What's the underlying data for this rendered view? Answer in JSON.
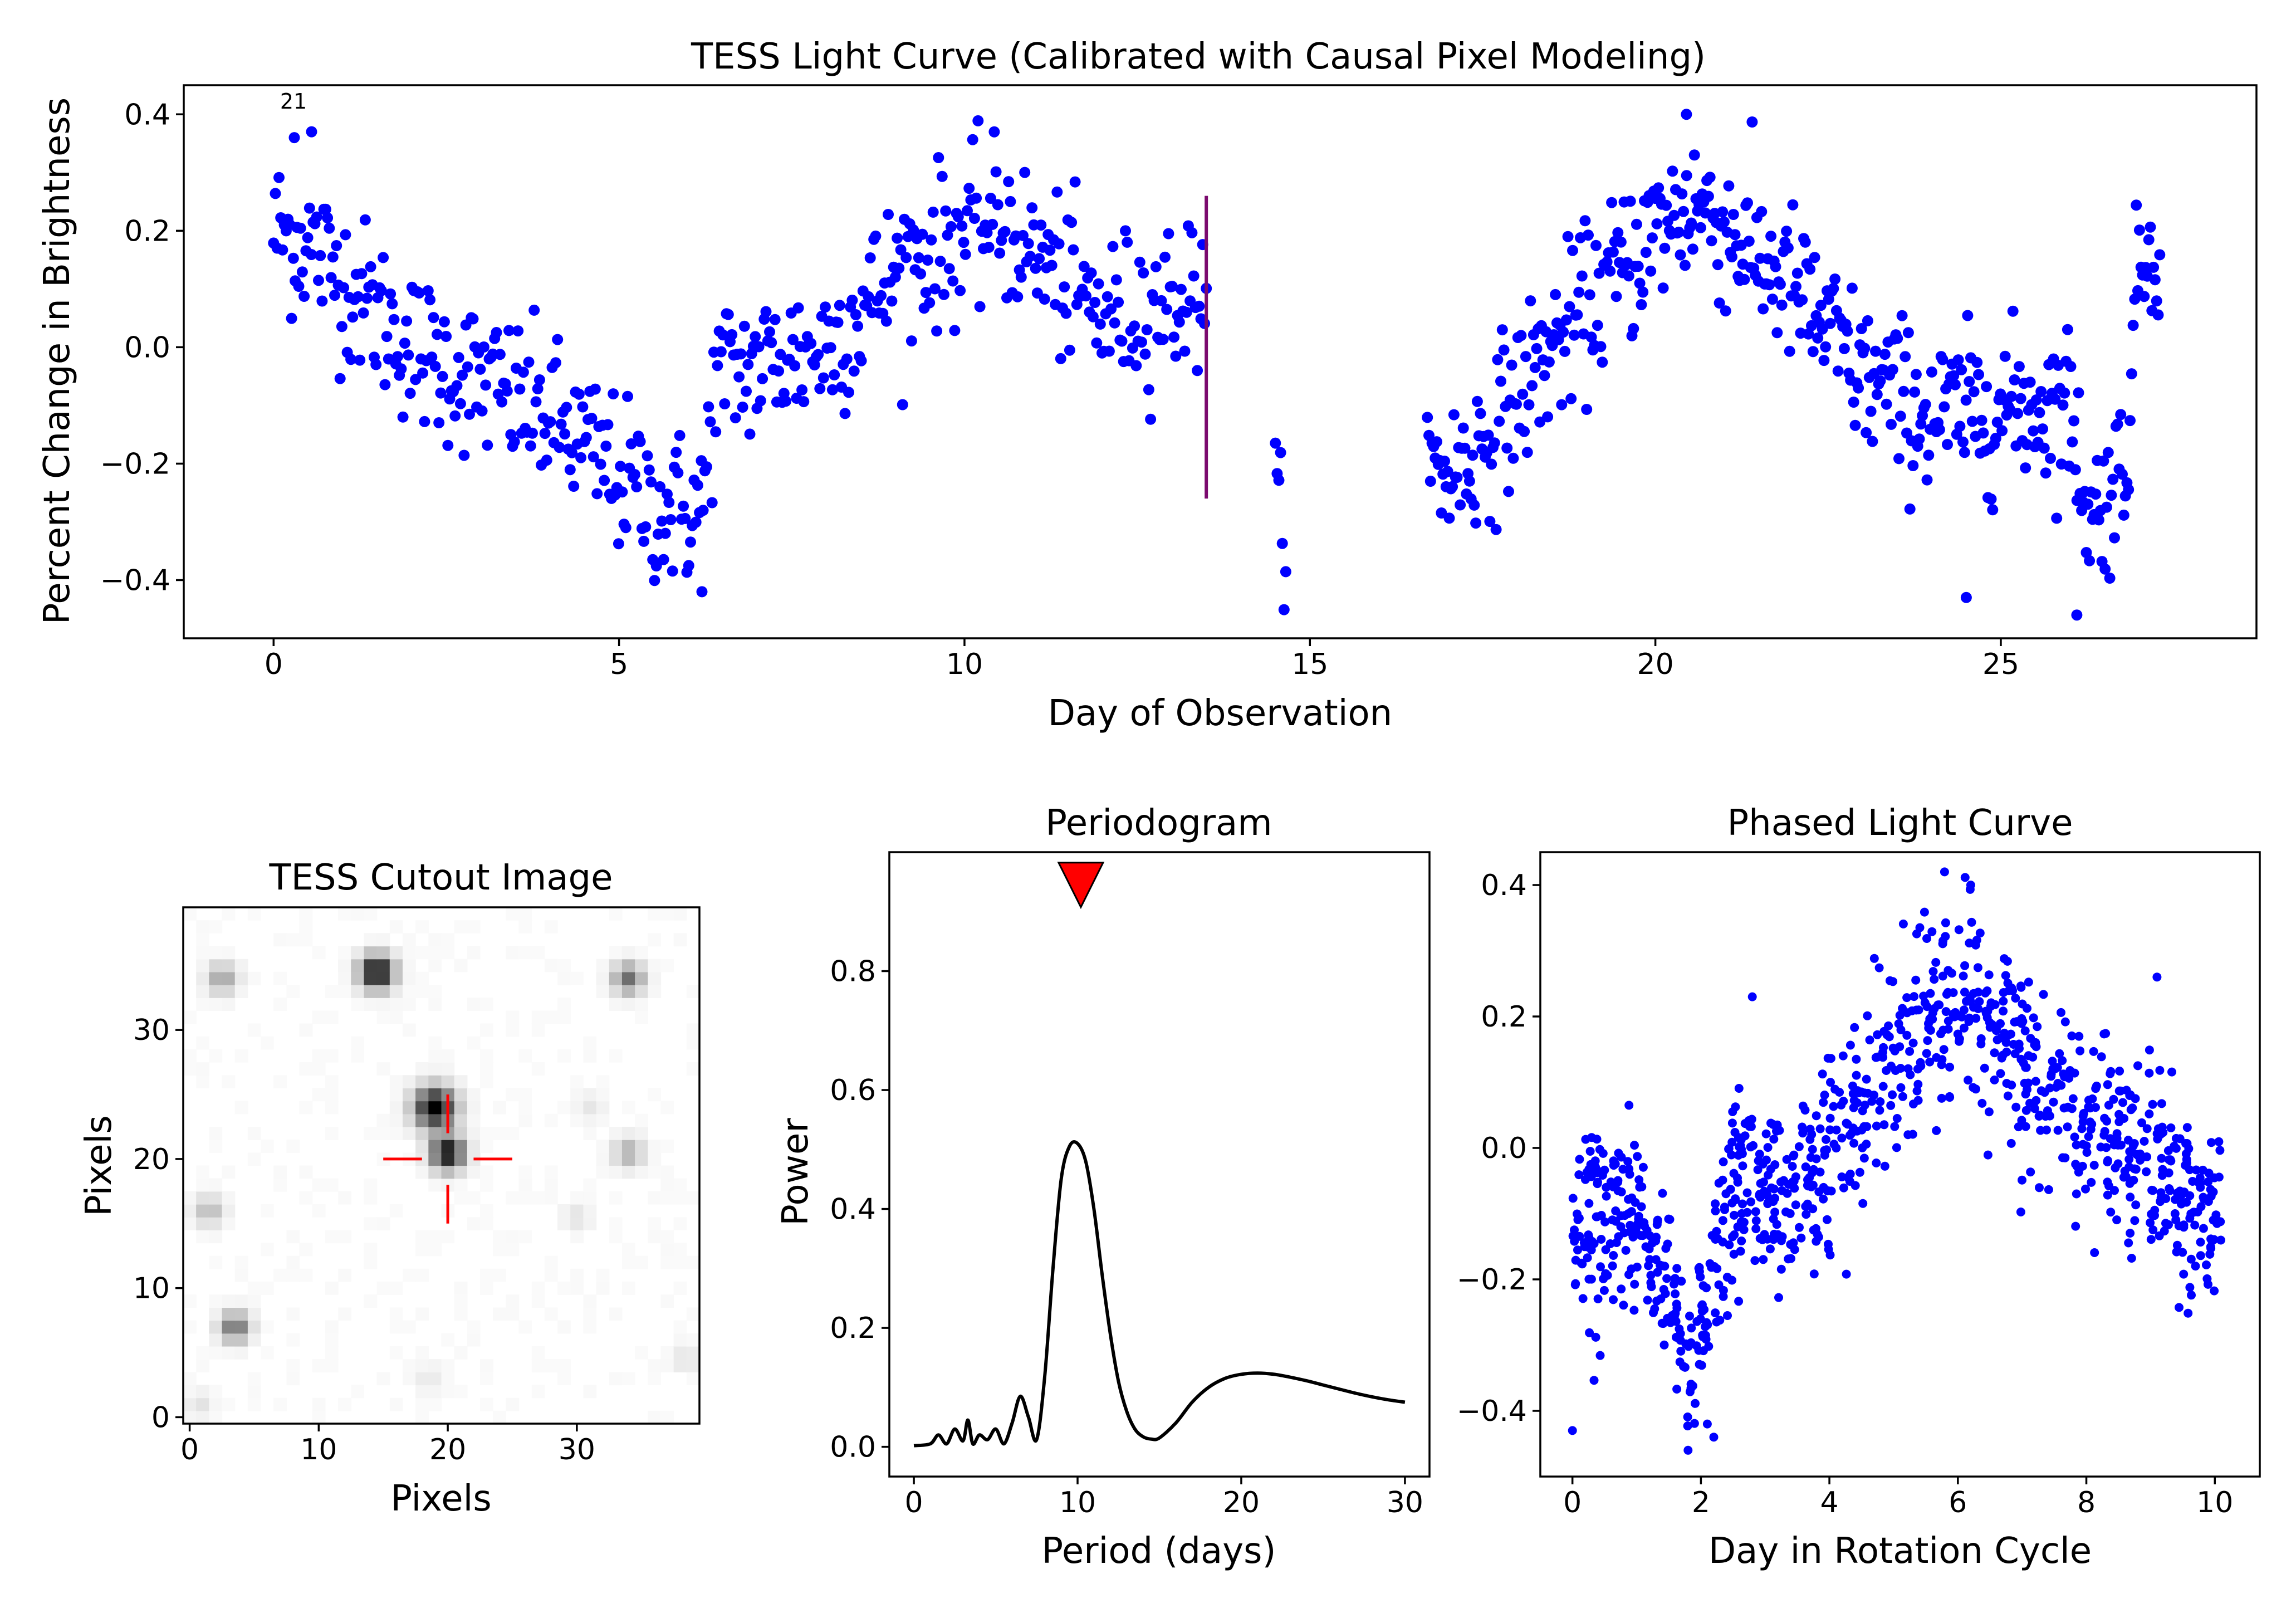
{
  "figure": {
    "panels": {
      "light_curve": {
        "title": "TESS Light Curve (Calibrated with Causal Pixel Modeling)",
        "xlabel": "Day of Observation",
        "ylabel": "Percent Change in Brightness",
        "annotation": "21"
      },
      "cutout": {
        "title": "TESS Cutout Image",
        "xlabel": "Pixels",
        "ylabel": "Pixels"
      },
      "periodogram": {
        "title": "Periodogram",
        "xlabel": "Period (days)",
        "ylabel": "Power"
      },
      "phased": {
        "title": "Phased Light Curve",
        "xlabel": "Day in Rotation Cycle",
        "ylabel": ""
      }
    }
  },
  "chart_data": [
    {
      "type": "scatter",
      "title": "TESS Light Curve (Calibrated with Causal Pixel Modeling)",
      "xlabel": "Day of Observation",
      "ylabel": "Percent Change in Brightness",
      "xlim": [
        -1.3,
        28.7
      ],
      "ylim": [
        -0.5,
        0.45
      ],
      "xticks": [
        0,
        5,
        10,
        15,
        20,
        25
      ],
      "xtick_labels": [
        "0",
        "5",
        "10",
        "15",
        "20",
        "25"
      ],
      "yticks": [
        -0.4,
        -0.2,
        0.0,
        0.2,
        0.4
      ],
      "ytick_labels": [
        "−0.4",
        "−0.2",
        "0.0",
        "0.2",
        "0.4"
      ],
      "marker_color": "#0000ff",
      "marker_line": {
        "x": 13.5,
        "y_range": [
          -0.26,
          0.26
        ],
        "color": "#7b0a6e"
      },
      "segments": [
        {
          "x_range": [
            0.0,
            13.5
          ],
          "trend": [
            [
              0,
              0.2
            ],
            [
              0.5,
              0.18
            ],
            [
              2,
              0.0
            ],
            [
              4,
              -0.12
            ],
            [
              5.6,
              -0.28
            ],
            [
              6.2,
              -0.28
            ],
            [
              6.4,
              -0.05
            ],
            [
              8,
              0.0
            ],
            [
              9.2,
              0.15
            ],
            [
              10.5,
              0.22
            ],
            [
              12,
              0.05
            ],
            [
              13.5,
              0.1
            ]
          ],
          "count": 520,
          "scatter": 0.08
        },
        {
          "x_range": [
            14.5,
            14.65
          ],
          "trend": [
            [
              14.5,
              -0.24
            ],
            [
              14.65,
              -0.32
            ]
          ],
          "count": 7,
          "scatter": 0.05
        },
        {
          "x_range": [
            16.7,
            27.3
          ],
          "trend": [
            [
              16.7,
              -0.22
            ],
            [
              17.3,
              -0.2
            ],
            [
              18.5,
              0.0
            ],
            [
              20,
              0.2
            ],
            [
              20.6,
              0.25
            ],
            [
              22,
              0.1
            ],
            [
              23,
              -0.05
            ],
            [
              24,
              -0.12
            ],
            [
              25.3,
              -0.1
            ],
            [
              26,
              -0.1
            ],
            [
              26.3,
              -0.3
            ],
            [
              26.8,
              -0.2
            ],
            [
              27.0,
              0.15
            ],
            [
              27.3,
              0.2
            ]
          ],
          "count": 470,
          "scatter": 0.08
        }
      ],
      "highlight_points": [
        [
          0.3,
          0.36
        ],
        [
          0.55,
          0.37
        ],
        [
          20.45,
          0.4
        ],
        [
          26.1,
          -0.46
        ],
        [
          24.5,
          -0.43
        ],
        [
          6.2,
          -0.42
        ]
      ]
    },
    {
      "type": "heatmap",
      "title": "TESS Cutout Image",
      "xlabel": "Pixels",
      "ylabel": "Pixels",
      "size": 40,
      "xlim": [
        -0.5,
        39.5
      ],
      "ylim": [
        -0.5,
        39.5
      ],
      "xticks": [
        0,
        10,
        20,
        30
      ],
      "xtick_labels": [
        "0",
        "10",
        "20",
        "30"
      ],
      "yticks": [
        0,
        10,
        20,
        30
      ],
      "ytick_labels": [
        "0",
        "10",
        "20",
        "30"
      ],
      "colormap": "gray_r",
      "sources": [
        {
          "x": 14.5,
          "y": 34.5,
          "amp": 1.0,
          "sigma": 0.9
        },
        {
          "x": 2.5,
          "y": 34,
          "amp": 0.35,
          "sigma": 0.8
        },
        {
          "x": 34,
          "y": 34,
          "amp": 0.55,
          "sigma": 0.8
        },
        {
          "x": 19,
          "y": 24,
          "amp": 1.0,
          "sigma": 1.1
        },
        {
          "x": 20,
          "y": 20.5,
          "amp": 0.95,
          "sigma": 0.9
        },
        {
          "x": 34,
          "y": 20.5,
          "amp": 0.3,
          "sigma": 0.8
        },
        {
          "x": 1.5,
          "y": 16,
          "amp": 0.25,
          "sigma": 0.8
        },
        {
          "x": 3.5,
          "y": 7,
          "amp": 0.55,
          "sigma": 0.8
        },
        {
          "x": 30,
          "y": 15.5,
          "amp": 0.1,
          "sigma": 0.7
        },
        {
          "x": 18.5,
          "y": 3,
          "amp": 0.08,
          "sigma": 0.7
        },
        {
          "x": 38.5,
          "y": 4.5,
          "amp": 0.1,
          "sigma": 0.7
        },
        {
          "x": 0.8,
          "y": 1,
          "amp": 0.1,
          "sigma": 0.7
        },
        {
          "x": 31,
          "y": 24,
          "amp": 0.08,
          "sigma": 0.7
        }
      ],
      "crosshair": {
        "x": 20,
        "y": 20,
        "gap": 2,
        "len": 3,
        "color": "#ff0000"
      }
    },
    {
      "type": "line",
      "title": "Periodogram",
      "xlabel": "Period (days)",
      "ylabel": "Power",
      "xlim": [
        -1.5,
        31.5
      ],
      "ylim": [
        -0.05,
        1.0
      ],
      "xticks": [
        0,
        10,
        20,
        30
      ],
      "xtick_labels": [
        "0",
        "10",
        "20",
        "30"
      ],
      "yticks": [
        0.0,
        0.2,
        0.4,
        0.6,
        0.8
      ],
      "ytick_labels": [
        "0.0",
        "0.2",
        "0.4",
        "0.6",
        "0.8"
      ],
      "line_color": "#000000",
      "x": [
        0.0,
        1.0,
        1.5,
        2.0,
        2.5,
        3.0,
        3.3,
        3.6,
        4.0,
        4.5,
        5.0,
        5.5,
        6.0,
        6.5,
        7.0,
        7.5,
        8.0,
        8.5,
        9.0,
        9.5,
        10.0,
        10.5,
        11.0,
        11.5,
        12.0,
        12.5,
        13.0,
        13.5,
        14.0,
        14.5,
        15.0,
        16.0,
        17.0,
        18.0,
        19.0,
        20.0,
        21.0,
        22.0,
        23.0,
        24.0,
        25.0,
        26.0,
        27.0,
        28.0,
        29.0,
        30.0
      ],
      "y": [
        0.002,
        0.005,
        0.02,
        0.005,
        0.03,
        0.01,
        0.045,
        0.005,
        0.02,
        0.012,
        0.03,
        0.005,
        0.04,
        0.085,
        0.05,
        0.012,
        0.12,
        0.3,
        0.45,
        0.505,
        0.51,
        0.48,
        0.4,
        0.29,
        0.19,
        0.11,
        0.06,
        0.03,
        0.017,
        0.013,
        0.015,
        0.04,
        0.075,
        0.1,
        0.115,
        0.122,
        0.124,
        0.122,
        0.117,
        0.111,
        0.104,
        0.097,
        0.09,
        0.084,
        0.079,
        0.075
      ],
      "marker": {
        "x": 10.2,
        "y": 0.945,
        "shape": "triangle-down",
        "color": "#ff0000"
      }
    },
    {
      "type": "scatter",
      "title": "Phased Light Curve",
      "xlabel": "Day in Rotation Cycle",
      "ylabel": "",
      "xlim": [
        -0.5,
        10.7
      ],
      "ylim": [
        -0.5,
        0.45
      ],
      "xticks": [
        0,
        2,
        4,
        6,
        8,
        10
      ],
      "xtick_labels": [
        "0",
        "2",
        "4",
        "6",
        "8",
        "10"
      ],
      "yticks": [
        -0.4,
        -0.2,
        0.0,
        0.2,
        0.4
      ],
      "ytick_labels": [
        "−0.4",
        "−0.2",
        "0.0",
        "0.2",
        "0.4"
      ],
      "marker_color": "#0000ff",
      "segments": [
        {
          "x_range": [
            0.0,
            10.1
          ],
          "trend": [
            [
              0,
              -0.12
            ],
            [
              1.0,
              -0.1
            ],
            [
              1.8,
              -0.3
            ],
            [
              2.2,
              -0.2
            ],
            [
              2.6,
              -0.05
            ],
            [
              3.0,
              -0.1
            ],
            [
              4.0,
              -0.02
            ],
            [
              5.0,
              0.15
            ],
            [
              6.0,
              0.22
            ],
            [
              6.5,
              0.2
            ],
            [
              7.5,
              0.08
            ],
            [
              8.5,
              0.0
            ],
            [
              9.5,
              -0.08
            ],
            [
              10.1,
              -0.15
            ]
          ],
          "count": 1000,
          "scatter": 0.085
        }
      ],
      "highlight_points": [
        [
          6.2,
          0.4
        ],
        [
          2.2,
          -0.44
        ],
        [
          1.8,
          -0.46
        ],
        [
          0.0,
          -0.43
        ],
        [
          9.1,
          0.26
        ],
        [
          2.8,
          0.23
        ],
        [
          2.1,
          -0.42
        ]
      ]
    }
  ]
}
